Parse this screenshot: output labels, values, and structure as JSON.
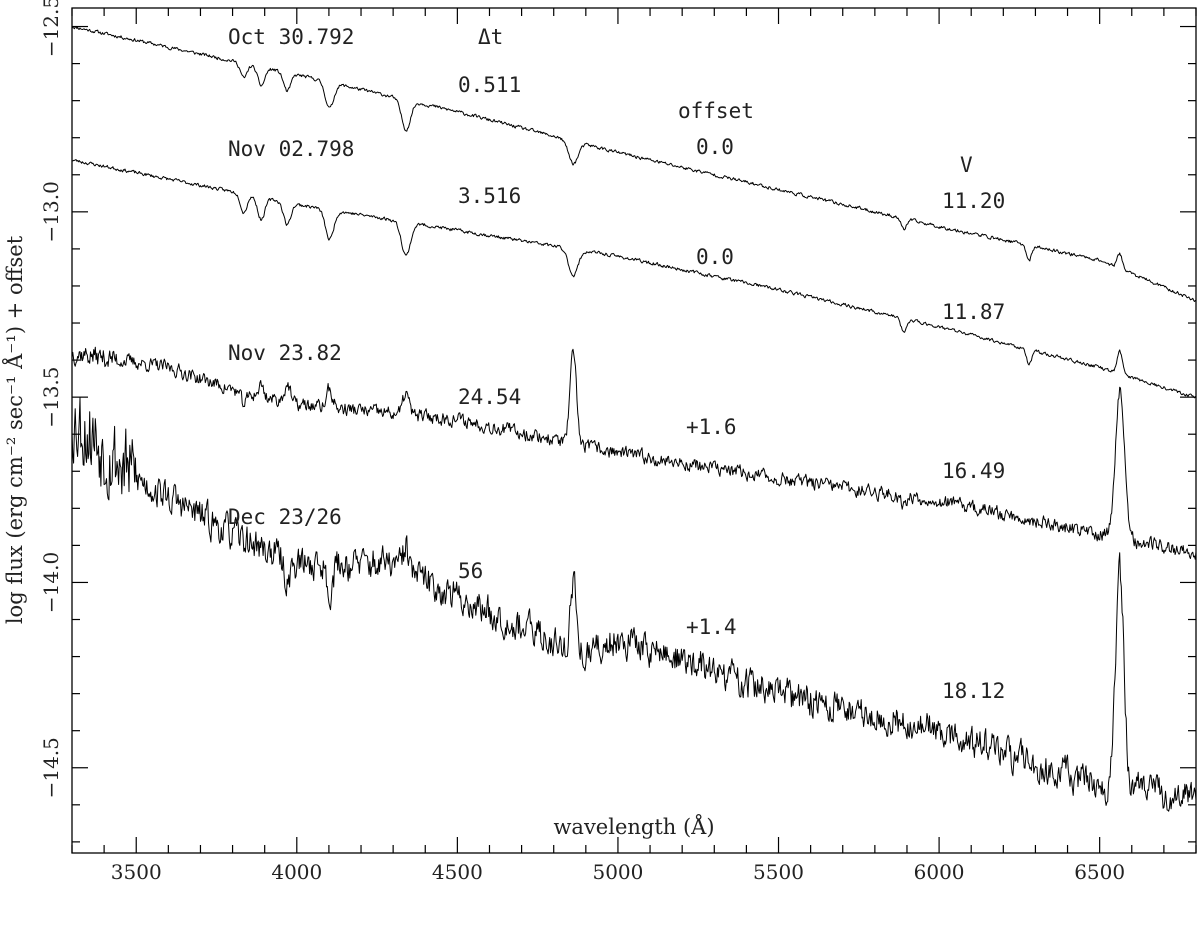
{
  "chart_data": {
    "type": "line",
    "title": "",
    "xlabel": "wavelength (Å)",
    "ylabel": "log flux (erg cm⁻² sec⁻¹ Å⁻¹) + offset",
    "xlim": [
      3300,
      6800
    ],
    "ylim": [
      -14.73,
      -12.45
    ],
    "x_ticks": [
      3500,
      4000,
      4500,
      5000,
      5500,
      6000,
      6500
    ],
    "x_tick_labels": [
      "3500",
      "4000",
      "4500",
      "5000",
      "5500",
      "6000",
      "6500"
    ],
    "y_ticks": [
      -12.5,
      -13.0,
      -13.5,
      -14.0,
      -14.5
    ],
    "y_tick_labels": [
      "−12.5",
      "−13.0",
      "−13.5",
      "−14.0",
      "−14.5"
    ],
    "grid": false,
    "column_headers": {
      "dt": "Δt",
      "offset": "offset",
      "v": "V"
    },
    "series": [
      {
        "date": "Oct 30.792",
        "dt": "0.511",
        "offset": "0.0",
        "vmag": "11.20",
        "continuum": [
          [
            3300,
            -12.5
          ],
          [
            4000,
            -12.63
          ],
          [
            4500,
            -12.73
          ],
          [
            5000,
            -12.84
          ],
          [
            5500,
            -12.94
          ],
          [
            6000,
            -13.04
          ],
          [
            6500,
            -13.13
          ],
          [
            6800,
            -13.24
          ]
        ],
        "lines": [
          [
            3835,
            -0.04,
            10
          ],
          [
            3889,
            -0.05,
            11
          ],
          [
            3970,
            -0.05,
            11
          ],
          [
            4102,
            -0.07,
            13
          ],
          [
            4340,
            -0.08,
            14
          ],
          [
            4861,
            -0.06,
            15
          ],
          [
            5890,
            -0.03,
            8
          ],
          [
            6280,
            -0.04,
            8
          ],
          [
            6563,
            0.04,
            8
          ]
        ],
        "noise": 0.004,
        "seed": 11
      },
      {
        "date": "Nov 02.798",
        "dt": "3.516",
        "offset": "0.0",
        "vmag": "11.87",
        "continuum": [
          [
            3300,
            -12.86
          ],
          [
            4000,
            -12.98
          ],
          [
            4500,
            -13.05
          ],
          [
            5000,
            -13.12
          ],
          [
            5500,
            -13.21
          ],
          [
            6000,
            -13.31
          ],
          [
            6500,
            -13.42
          ],
          [
            6800,
            -13.5
          ]
        ],
        "lines": [
          [
            3835,
            -0.05,
            10
          ],
          [
            3889,
            -0.06,
            11
          ],
          [
            3970,
            -0.06,
            11
          ],
          [
            4102,
            -0.08,
            13
          ],
          [
            4340,
            -0.09,
            14
          ],
          [
            4861,
            -0.07,
            15
          ],
          [
            5890,
            -0.04,
            8
          ],
          [
            6280,
            -0.04,
            8
          ],
          [
            6563,
            0.06,
            8
          ]
        ],
        "noise": 0.004,
        "seed": 23
      },
      {
        "date": "Nov 23.82",
        "dt": "24.54",
        "offset": "+1.6",
        "vmag": "16.49",
        "continuum": [
          [
            3300,
            -13.38
          ],
          [
            3600,
            -13.42
          ],
          [
            3800,
            -13.48
          ],
          [
            4000,
            -13.52
          ],
          [
            4500,
            -13.56
          ],
          [
            5000,
            -13.65
          ],
          [
            5500,
            -13.72
          ],
          [
            6000,
            -13.78
          ],
          [
            6500,
            -13.87
          ],
          [
            6800,
            -13.92
          ]
        ],
        "lines": [
          [
            3835,
            -0.03,
            10
          ],
          [
            3889,
            0.03,
            8
          ],
          [
            3970,
            0.05,
            9
          ],
          [
            4102,
            0.05,
            9
          ],
          [
            4340,
            0.06,
            9
          ],
          [
            4861,
            0.24,
            10
          ],
          [
            6563,
            0.4,
            14
          ],
          [
            5890,
            -0.02,
            10
          ]
        ],
        "noise": 0.016,
        "seed": 37
      },
      {
        "date": "Dec 23/26",
        "dt": "56",
        "offset": "+1.4",
        "vmag": "18.12",
        "continuum": [
          [
            3300,
            -13.55
          ],
          [
            3500,
            -13.72
          ],
          [
            3800,
            -13.87
          ],
          [
            4000,
            -13.95
          ],
          [
            4300,
            -13.95
          ],
          [
            4500,
            -14.04
          ],
          [
            4700,
            -14.12
          ],
          [
            4900,
            -14.2
          ],
          [
            5000,
            -14.15
          ],
          [
            5500,
            -14.3
          ],
          [
            6000,
            -14.4
          ],
          [
            6500,
            -14.55
          ],
          [
            6800,
            -14.58
          ]
        ],
        "lines": [
          [
            3970,
            -0.06,
            9
          ],
          [
            4102,
            -0.07,
            10
          ],
          [
            4340,
            0.06,
            9
          ],
          [
            4861,
            0.19,
            9
          ],
          [
            6563,
            0.58,
            13
          ]
        ],
        "noise": 0.038,
        "seed": 53
      }
    ]
  }
}
